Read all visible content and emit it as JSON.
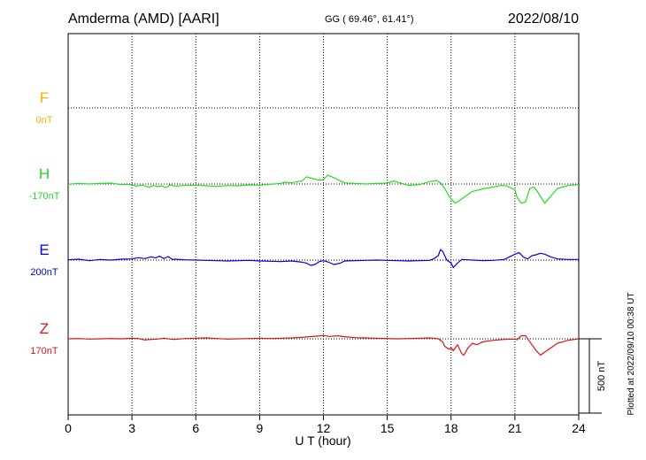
{
  "header": {
    "station": "Amderma (AMD)  [AARI]",
    "coords": "GG ( 69.46°,  61.41°)",
    "date": "2022/08/10"
  },
  "side_note": "Plotted at 2022/09/10 00:38 UT",
  "chart_data": {
    "type": "line",
    "xlabel": "U T (hour)",
    "xlim": [
      0,
      24
    ],
    "xticks": [
      "0",
      "3",
      "6",
      "9",
      "12",
      "15",
      "18",
      "21",
      "24"
    ],
    "scale_bar": {
      "label": "500 nT",
      "value": 500
    },
    "colors": {
      "F": "#f2b000",
      "H": "#22dd22",
      "E": "#0000e0",
      "Z": "#e01010"
    },
    "series": [
      {
        "name": "F",
        "baseline": "0nT",
        "x": [],
        "y": []
      },
      {
        "name": "H",
        "baseline": "-170nT",
        "x": [
          0,
          0.5,
          1,
          1.5,
          2,
          2.5,
          3,
          3.2,
          3.5,
          3.8,
          4,
          4.2,
          4.4,
          4.6,
          4.8,
          5,
          5.5,
          6,
          6.5,
          7,
          7.5,
          8,
          8.5,
          9,
          9.5,
          10,
          10.2,
          10.5,
          11,
          11.2,
          11.5,
          11.8,
          12,
          12.2,
          12.5,
          12.8,
          13,
          13.5,
          14,
          14.5,
          15,
          15.3,
          15.6,
          16,
          16.5,
          17,
          17.3,
          17.5,
          17.7,
          17.9,
          18,
          18.2,
          18.4,
          18.6,
          18.8,
          19,
          19.3,
          19.6,
          20,
          20.3,
          20.6,
          21,
          21.1,
          21.3,
          21.5,
          21.7,
          21.9,
          22.1,
          22.4,
          22.7,
          23,
          23.5,
          24
        ],
        "y": [
          -2,
          4,
          0,
          4,
          6,
          -4,
          -4,
          -14,
          -8,
          -22,
          -10,
          -18,
          -12,
          -24,
          -6,
          -14,
          -10,
          -8,
          -12,
          -16,
          -10,
          -12,
          -6,
          -8,
          -2,
          4,
          12,
          8,
          22,
          48,
          36,
          26,
          30,
          60,
          42,
          20,
          8,
          4,
          0,
          4,
          6,
          20,
          8,
          -10,
          -4,
          16,
          24,
          8,
          -30,
          -80,
          -100,
          -130,
          -110,
          -90,
          -70,
          -50,
          -40,
          -30,
          -20,
          -10,
          -12,
          -40,
          -90,
          -130,
          -120,
          -30,
          -20,
          -60,
          -130,
          -80,
          -30,
          -10,
          -4
        ]
      },
      {
        "name": "E",
        "baseline": "200nT",
        "x": [
          0,
          0.5,
          1,
          1.5,
          2,
          2.5,
          3,
          3.3,
          3.6,
          3.9,
          4.1,
          4.3,
          4.5,
          4.7,
          4.9,
          5,
          5.5,
          6,
          6.5,
          7,
          7.5,
          8,
          8.5,
          9,
          9.5,
          10,
          10.5,
          11,
          11.2,
          11.4,
          11.6,
          11.8,
          12,
          12.2,
          12.5,
          12.8,
          13,
          13.5,
          14,
          14.5,
          15,
          15.5,
          16,
          16.5,
          17,
          17.2,
          17.4,
          17.5,
          17.6,
          17.8,
          18,
          18.1,
          18.3,
          18.5,
          18.8,
          19,
          19.5,
          20,
          20.5,
          21,
          21.2,
          21.4,
          21.6,
          21.8,
          22,
          22.2,
          22.4,
          22.7,
          23,
          23.5,
          24
        ],
        "y": [
          2,
          6,
          -4,
          4,
          0,
          6,
          8,
          16,
          10,
          22,
          14,
          26,
          10,
          24,
          4,
          6,
          2,
          0,
          -2,
          -4,
          -6,
          -4,
          -2,
          -6,
          -8,
          -10,
          -6,
          -14,
          -20,
          -36,
          -30,
          -10,
          -4,
          -12,
          -30,
          -20,
          -6,
          -4,
          -2,
          0,
          -2,
          -4,
          -6,
          -4,
          -2,
          10,
          30,
          70,
          60,
          0,
          -20,
          -50,
          -20,
          4,
          2,
          0,
          -4,
          -2,
          4,
          40,
          50,
          20,
          8,
          30,
          36,
          46,
          40,
          20,
          8,
          4,
          4
        ]
      },
      {
        "name": "Z",
        "baseline": "170nT",
        "x": [
          0,
          0.5,
          1,
          1.5,
          2,
          2.5,
          3,
          3.3,
          3.6,
          3.9,
          4.2,
          4.5,
          4.8,
          5,
          5.5,
          6,
          6.5,
          7,
          7.5,
          8,
          8.5,
          9,
          9.5,
          10,
          10.5,
          11,
          11.3,
          11.7,
          12,
          12.3,
          12.7,
          13,
          13.5,
          14,
          14.5,
          15,
          15.5,
          16,
          16.5,
          17,
          17.2,
          17.4,
          17.6,
          17.7,
          17.9,
          18,
          18.1,
          18.3,
          18.5,
          18.6,
          18.8,
          19,
          19.2,
          19.5,
          20,
          20.5,
          21,
          21.1,
          21.3,
          21.5,
          21.8,
          22,
          22.2,
          22.5,
          22.8,
          23,
          23.5,
          24
        ],
        "y": [
          0,
          2,
          -2,
          0,
          2,
          0,
          4,
          2,
          -8,
          -4,
          -2,
          4,
          -2,
          -4,
          2,
          4,
          6,
          2,
          -2,
          0,
          2,
          4,
          2,
          4,
          6,
          10,
          14,
          18,
          22,
          16,
          20,
          14,
          8,
          6,
          4,
          2,
          0,
          2,
          4,
          6,
          4,
          0,
          -20,
          -50,
          -70,
          -60,
          -80,
          -40,
          -100,
          -110,
          -60,
          -30,
          -40,
          -20,
          -10,
          -4,
          -2,
          -6,
          20,
          20,
          -40,
          -80,
          -110,
          -80,
          -50,
          -30,
          -10,
          0
        ]
      }
    ]
  }
}
